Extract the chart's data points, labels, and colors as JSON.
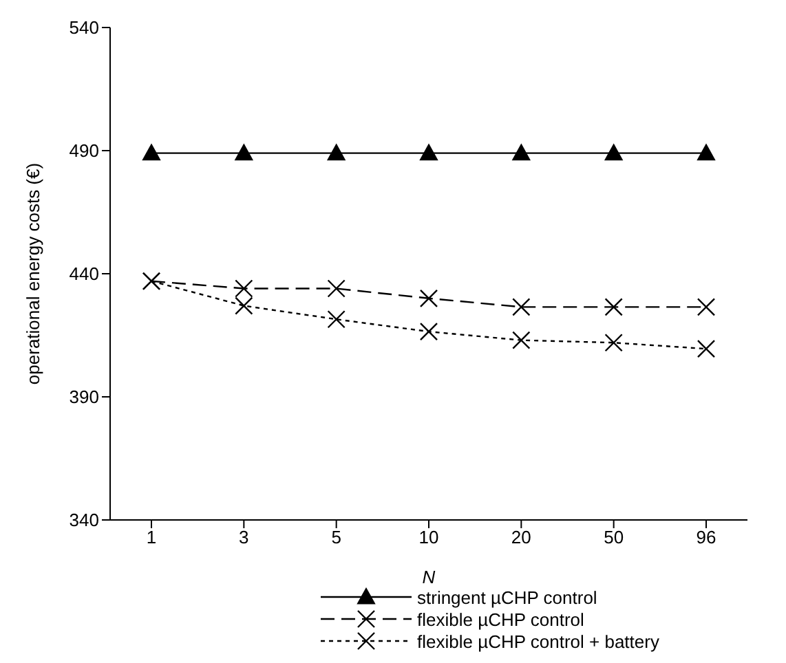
{
  "chart_data": {
    "type": "line",
    "xlabel": "N",
    "ylabel": "operational energy costs (€)",
    "categories": [
      "1",
      "3",
      "5",
      "10",
      "20",
      "50",
      "96"
    ],
    "series": [
      {
        "name": "stringent µCHP control",
        "color": "#000000",
        "marker": "triangle",
        "line_style": "solid",
        "values": [
          489,
          489,
          489,
          489,
          489,
          489,
          489
        ]
      },
      {
        "name": "flexible µCHP control",
        "color": "#000000",
        "marker": "cross",
        "line_style": "dashed",
        "values": [
          437,
          434,
          434,
          430,
          426.5,
          426.5,
          426.5
        ]
      },
      {
        "name": "flexible µCHP control + battery",
        "color": "#000000",
        "marker": "cross",
        "line_style": "dotted",
        "values": [
          437,
          427,
          421.5,
          416.5,
          413,
          412,
          409.5
        ]
      }
    ],
    "ylim": [
      340,
      540
    ],
    "yticks": [
      340,
      390,
      440,
      490,
      540
    ],
    "grid": false,
    "legend": "bottom"
  }
}
